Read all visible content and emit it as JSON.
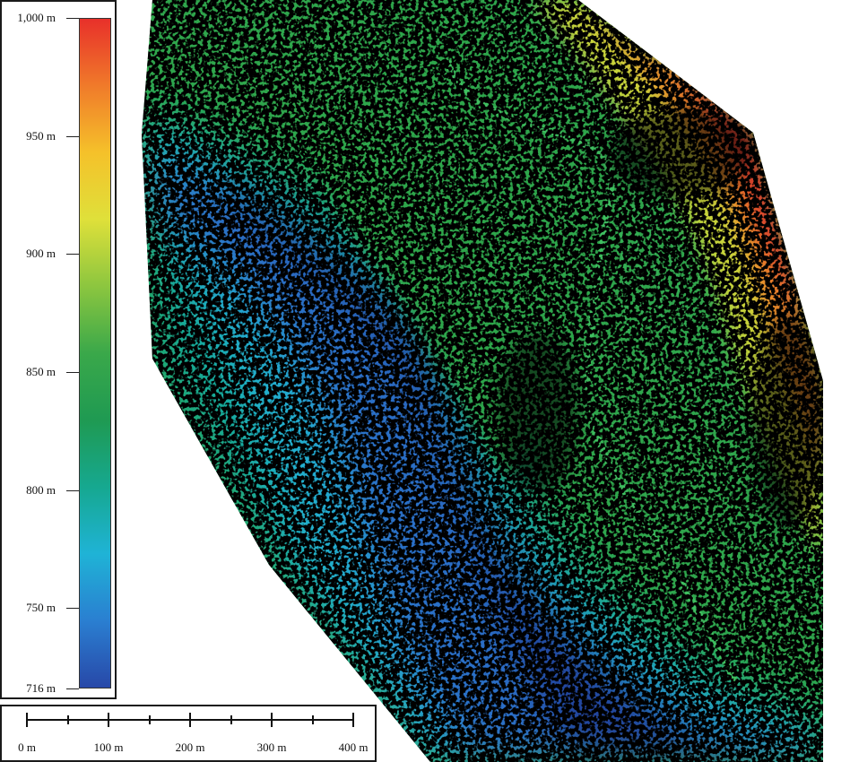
{
  "legend": {
    "ticks": [
      {
        "label": "1,000 m",
        "value": 1000
      },
      {
        "label": "950 m",
        "value": 950
      },
      {
        "label": "900 m",
        "value": 900
      },
      {
        "label": "850 m",
        "value": 850
      },
      {
        "label": "800 m",
        "value": 800
      },
      {
        "label": "750 m",
        "value": 750
      },
      {
        "label": "716 m",
        "value": 716
      }
    ],
    "max": 1000,
    "min": 716,
    "colors": [
      "#e8302a",
      "#f07a2a",
      "#f5c12a",
      "#dfe03a",
      "#8cc63f",
      "#3aa84a",
      "#1f9a52",
      "#16a890",
      "#1fb3d6",
      "#2a7fd1",
      "#2848a8"
    ]
  },
  "scalebar": {
    "labels": [
      "0 m",
      "100 m",
      "200 m",
      "300 m",
      "400 m"
    ]
  },
  "map": {
    "colors": {
      "red": "#e03a2a",
      "orange": "#e8872c",
      "yellow": "#d8d43a",
      "green": "#2fa64c",
      "dark_green": "#1a8a44",
      "teal": "#16a890",
      "cyan": "#22b0d0",
      "blue": "#2a6fc8",
      "dark_blue": "#22459e",
      "texture": "#050505",
      "road": "#35b055"
    }
  }
}
